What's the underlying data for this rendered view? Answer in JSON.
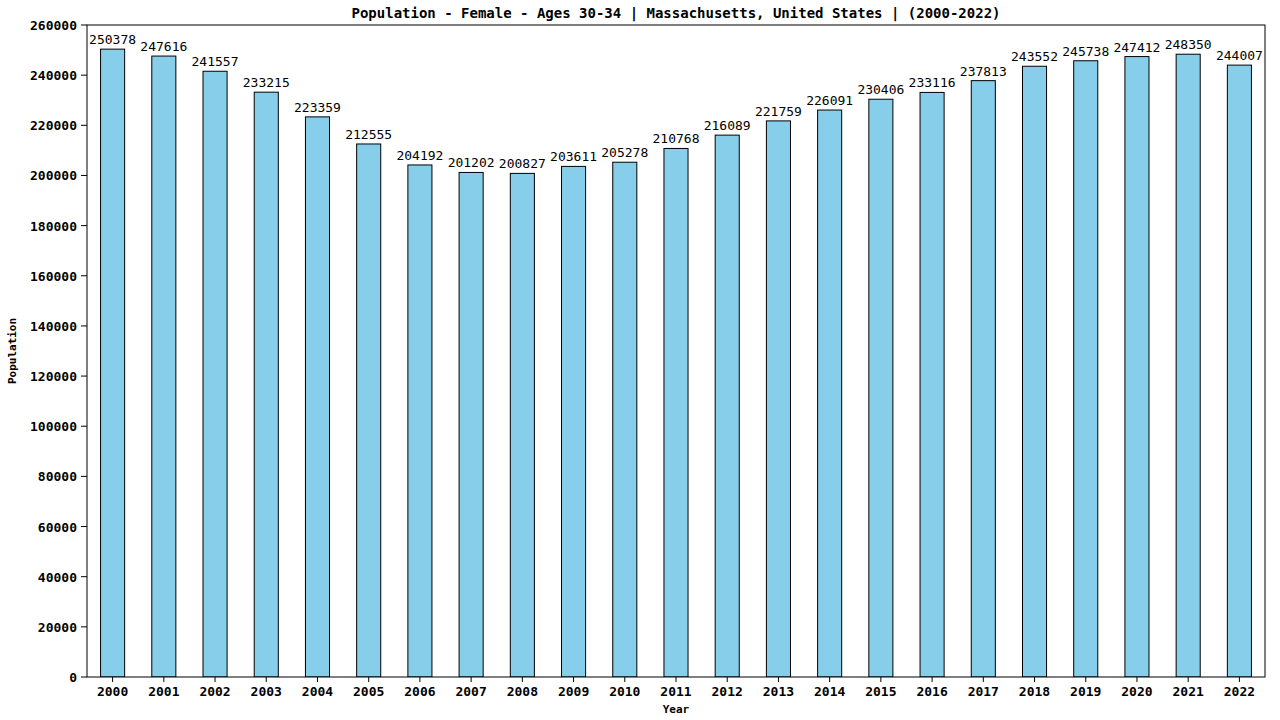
{
  "chart_data": {
    "type": "bar",
    "title": "Population - Female - Ages 30-34 | Massachusetts, United States |  (2000-2022)",
    "x_label": "Year",
    "y_label": "Population",
    "categories": [
      "2000",
      "2001",
      "2002",
      "2003",
      "2004",
      "2005",
      "2006",
      "2007",
      "2008",
      "2009",
      "2010",
      "2011",
      "2012",
      "2013",
      "2014",
      "2015",
      "2016",
      "2017",
      "2018",
      "2019",
      "2020",
      "2021",
      "2022"
    ],
    "values": [
      250378,
      247616,
      241557,
      233215,
      223359,
      212555,
      204192,
      201202,
      200827,
      203611,
      205278,
      210768,
      216089,
      221759,
      226091,
      230406,
      233116,
      237813,
      243552,
      245738,
      247412,
      248350,
      244007
    ],
    "color": "#87ceeb",
    "ylim": [
      0,
      260000
    ],
    "yticks": [
      0,
      20000,
      40000,
      60000,
      80000,
      100000,
      120000,
      140000,
      160000,
      180000,
      200000,
      220000,
      240000,
      260000
    ],
    "grid": false,
    "data_labels": true
  }
}
